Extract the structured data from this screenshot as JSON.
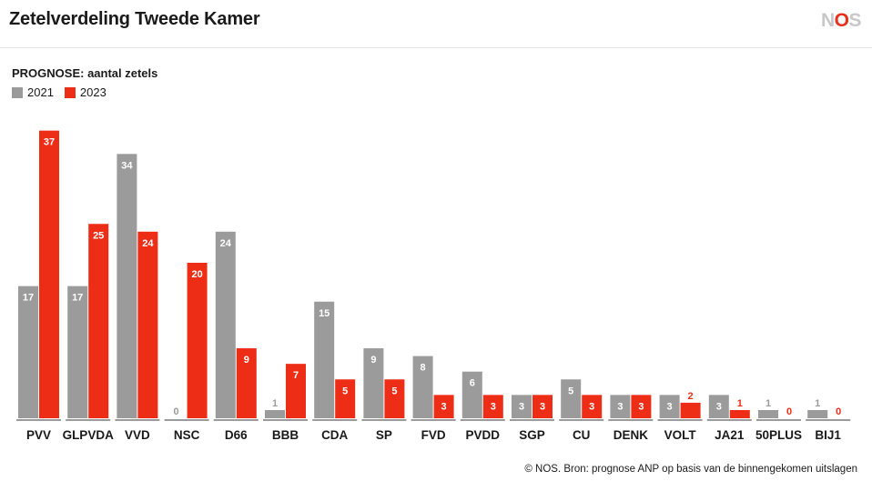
{
  "header": {
    "title": "Zetelverdeling Tweede Kamer",
    "logo_prefix": "N",
    "logo_middle": "O",
    "logo_suffix": "S"
  },
  "subtitle": "PROGNOSE: aantal zetels",
  "source": "© NOS. Bron: prognose ANP op basis van de binnengekomen uitslagen",
  "colors": {
    "series_2021": "#9b9b9b",
    "series_2023": "#ee2d17",
    "axis": "#9b9b9b",
    "label_inside": "#ffffff"
  },
  "chart_data": {
    "type": "bar",
    "title": "Zetelverdeling Tweede Kamer",
    "subtitle": "PROGNOSE: aantal zetels",
    "categories": [
      "PVV",
      "GLPVDA",
      "VVD",
      "NSC",
      "D66",
      "BBB",
      "CDA",
      "SP",
      "FVD",
      "PVDD",
      "SGP",
      "CU",
      "DENK",
      "VOLT",
      "JA21",
      "50PLUS",
      "BIJ1"
    ],
    "series": [
      {
        "name": "2021",
        "values": [
          17,
          17,
          34,
          0,
          24,
          1,
          15,
          9,
          8,
          6,
          3,
          5,
          3,
          3,
          3,
          1,
          1
        ]
      },
      {
        "name": "2023",
        "values": [
          37,
          25,
          24,
          20,
          9,
          7,
          5,
          5,
          3,
          3,
          3,
          3,
          3,
          2,
          1,
          0,
          0
        ]
      }
    ],
    "xlabel": "",
    "ylabel": "",
    "ylim": [
      0,
      37
    ],
    "grid": false,
    "legend": "top-left"
  }
}
